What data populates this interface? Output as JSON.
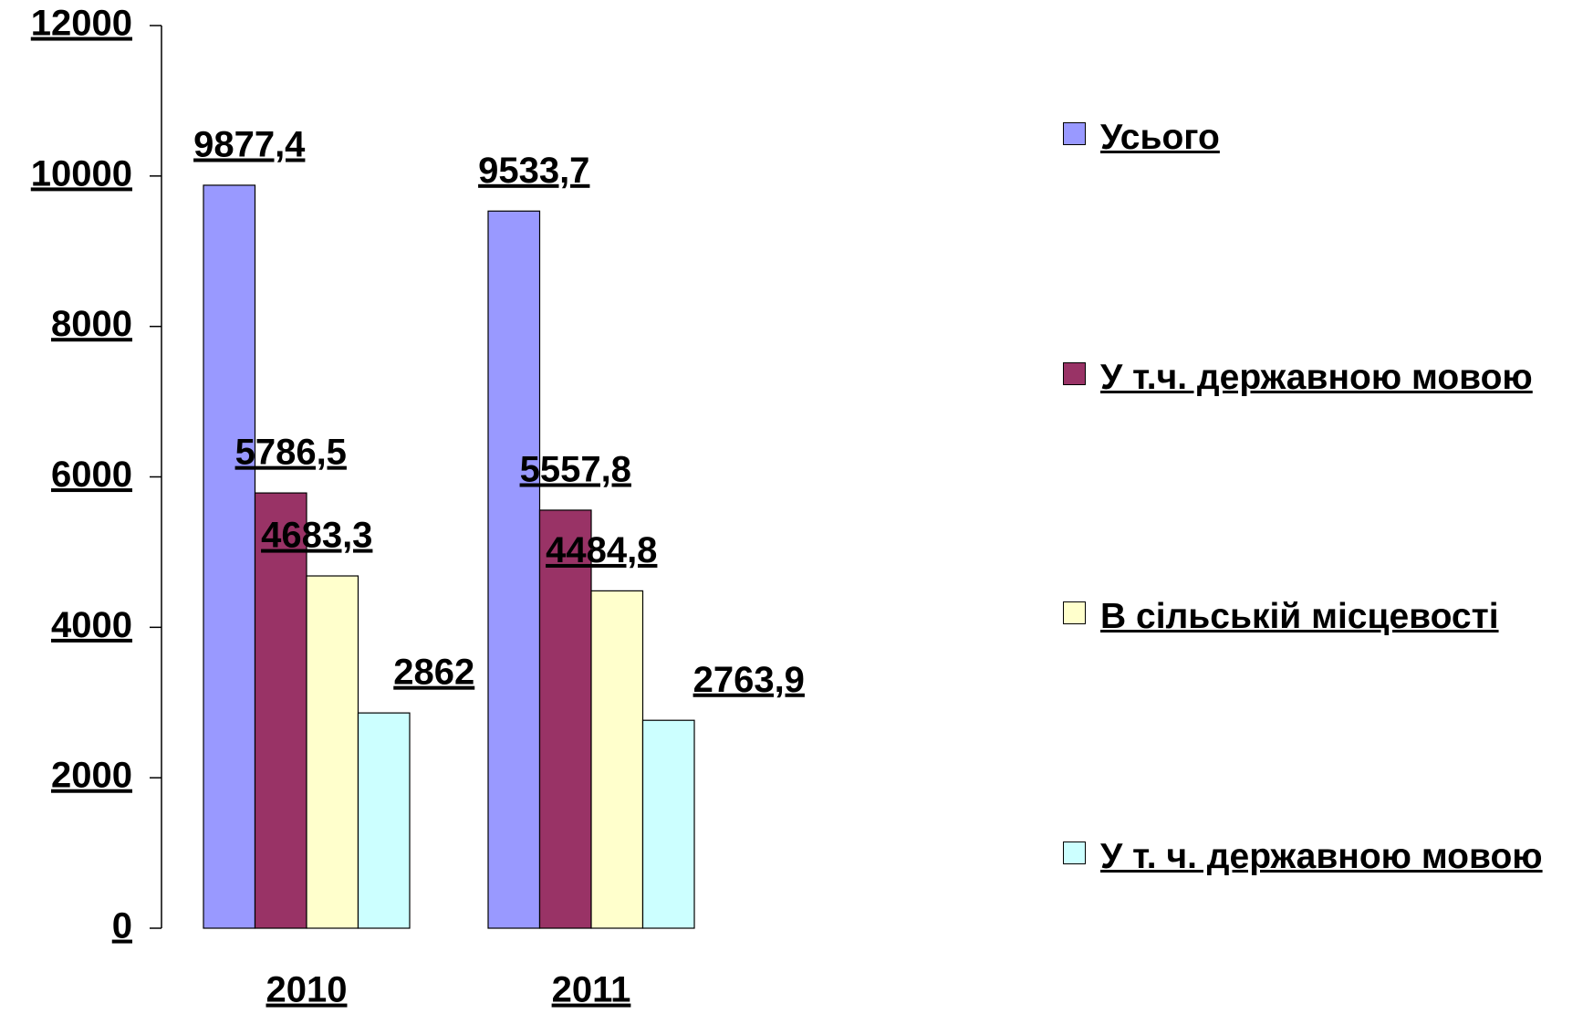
{
  "chart_data": {
    "type": "bar",
    "categories": [
      "2010",
      "2011"
    ],
    "series": [
      {
        "name": "Усього",
        "color": "#9999ff",
        "values": [
          9877.4,
          9533.7
        ],
        "value_labels": [
          "9877,4",
          "9533,7"
        ]
      },
      {
        "name": "У т.ч. державною мовою",
        "color": "#993366",
        "values": [
          5786.5,
          5557.8
        ],
        "value_labels": [
          "5786,5",
          "5557,8"
        ]
      },
      {
        "name": "В сільській місцевості",
        "color": "#ffffcc",
        "values": [
          4683.3,
          4484.8
        ],
        "value_labels": [
          "4683,3",
          "4484,8"
        ]
      },
      {
        "name": "У т. ч. державною мовою",
        "color": "#ccffff",
        "values": [
          2862,
          2763.9
        ],
        "value_labels": [
          "2862",
          "2763,9"
        ]
      }
    ],
    "ylim": [
      0,
      12000
    ],
    "yticks": [
      0,
      2000,
      4000,
      6000,
      8000,
      10000,
      12000
    ],
    "legend": "right"
  }
}
